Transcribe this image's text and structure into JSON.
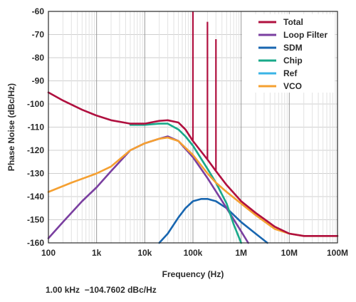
{
  "chart_data": {
    "type": "line",
    "title": "",
    "xlabel": "Frequency (Hz)",
    "ylabel": "Phase Noise (dBc/Hz)",
    "xscale": "log",
    "xlim": [
      100,
      100000000
    ],
    "ylim": [
      -160,
      -60
    ],
    "xticks": [
      100,
      1000,
      10000,
      100000,
      1000000,
      10000000,
      100000000
    ],
    "xtick_labels": [
      "100",
      "1k",
      "10k",
      "100k",
      "1M",
      "10M",
      "100M"
    ],
    "yticks": [
      -60,
      -70,
      -80,
      -90,
      -100,
      -110,
      -120,
      -130,
      -140,
      -150,
      -160
    ],
    "ytick_labels": [
      "-60",
      "-70",
      "-80",
      "-90",
      "-100",
      "-110",
      "-120",
      "-130",
      "-140",
      "-150",
      "-160"
    ],
    "grid": true,
    "legend_position": "top-right",
    "series": [
      {
        "name": "Total",
        "color": "#b0103f",
        "points": [
          [
            100,
            -95
          ],
          [
            200,
            -98.5
          ],
          [
            500,
            -102.5
          ],
          [
            1000,
            -105
          ],
          [
            2000,
            -107
          ],
          [
            5000,
            -108.5
          ],
          [
            10000,
            -108.5
          ],
          [
            20000,
            -107.3
          ],
          [
            30000,
            -107
          ],
          [
            50000,
            -108
          ],
          [
            70000,
            -111
          ],
          [
            100000,
            -116
          ],
          [
            200000,
            -124
          ],
          [
            300000,
            -129
          ],
          [
            500000,
            -135
          ],
          [
            1000000,
            -142
          ],
          [
            2000000,
            -147
          ],
          [
            5000000,
            -153
          ],
          [
            10000000,
            -156
          ],
          [
            20000000,
            -157
          ],
          [
            50000000,
            -157
          ],
          [
            100000000,
            -157
          ]
        ],
        "spurs": [
          [
            100000,
            -60
          ],
          [
            200000,
            -64.5
          ],
          [
            300000,
            -72
          ]
        ]
      },
      {
        "name": "Loop Filter",
        "color": "#7a3fa0",
        "points": [
          [
            100,
            -158
          ],
          [
            200,
            -151
          ],
          [
            500,
            -142
          ],
          [
            1000,
            -136
          ],
          [
            2000,
            -129
          ],
          [
            5000,
            -120
          ],
          [
            10000,
            -117
          ],
          [
            20000,
            -115
          ],
          [
            30000,
            -114
          ],
          [
            50000,
            -116
          ],
          [
            100000,
            -123
          ],
          [
            200000,
            -132
          ],
          [
            500000,
            -145
          ],
          [
            1000000,
            -155
          ],
          [
            1400000,
            -160
          ]
        ]
      },
      {
        "name": "SDM",
        "color": "#1866b0",
        "points": [
          [
            20000,
            -160
          ],
          [
            30000,
            -156
          ],
          [
            50000,
            -149
          ],
          [
            70000,
            -145
          ],
          [
            100000,
            -142
          ],
          [
            150000,
            -141
          ],
          [
            200000,
            -141
          ],
          [
            300000,
            -142
          ],
          [
            500000,
            -145
          ],
          [
            1000000,
            -151
          ],
          [
            2000000,
            -156
          ],
          [
            3500000,
            -160
          ]
        ]
      },
      {
        "name": "Chip",
        "color": "#19a98a",
        "points": [
          [
            5000,
            -109
          ],
          [
            10000,
            -109
          ],
          [
            20000,
            -108.5
          ],
          [
            30000,
            -108.5
          ],
          [
            50000,
            -111
          ],
          [
            70000,
            -114
          ],
          [
            100000,
            -118
          ],
          [
            200000,
            -128
          ],
          [
            300000,
            -134
          ],
          [
            500000,
            -143
          ],
          [
            700000,
            -152
          ],
          [
            1000000,
            -160
          ]
        ]
      },
      {
        "name": "Ref",
        "color": "#3ab4e6",
        "points": []
      },
      {
        "name": "VCO",
        "color": "#f5a031",
        "points": [
          [
            100,
            -138
          ],
          [
            300,
            -134
          ],
          [
            1000,
            -130
          ],
          [
            2000,
            -127
          ],
          [
            5000,
            -120
          ],
          [
            10000,
            -117
          ],
          [
            20000,
            -115
          ],
          [
            30000,
            -114.5
          ],
          [
            50000,
            -116
          ],
          [
            100000,
            -122
          ],
          [
            200000,
            -130
          ],
          [
            300000,
            -134
          ],
          [
            500000,
            -138
          ],
          [
            1000000,
            -143
          ],
          [
            2000000,
            -148
          ],
          [
            5000000,
            -154
          ],
          [
            10000000,
            -156
          ],
          [
            20000000,
            -157
          ],
          [
            50000000,
            -157
          ],
          [
            100000000,
            -157
          ]
        ]
      }
    ]
  },
  "readout": {
    "text": "1.00 kHz  −104.7602 dBc/Hz"
  }
}
